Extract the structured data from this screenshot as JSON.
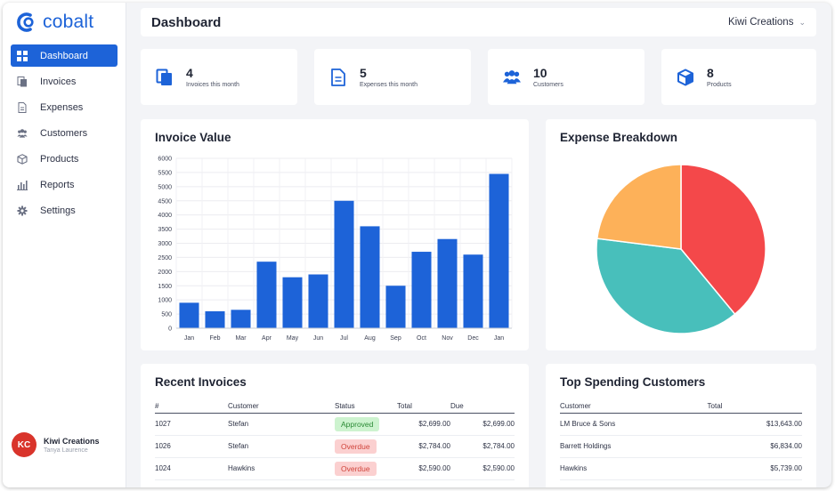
{
  "app": {
    "logo_text": "cobalt"
  },
  "sidebar": {
    "items": [
      {
        "label": "Dashboard",
        "icon": "dashboard-grid-icon",
        "active": true
      },
      {
        "label": "Invoices",
        "icon": "invoices-icon"
      },
      {
        "label": "Expenses",
        "icon": "expenses-icon"
      },
      {
        "label": "Customers",
        "icon": "customers-icon"
      },
      {
        "label": "Products",
        "icon": "products-icon"
      },
      {
        "label": "Reports",
        "icon": "reports-chart-icon"
      },
      {
        "label": "Settings",
        "icon": "gear-icon"
      }
    ],
    "user": {
      "initials": "KC",
      "name": "Kiwi Creations",
      "subtitle": "Tanya Laurence"
    }
  },
  "header": {
    "title": "Dashboard",
    "company": "Kiwi Creations"
  },
  "stats": [
    {
      "value": "4",
      "label": "Invoices this month",
      "icon": "invoice-stack-icon"
    },
    {
      "value": "5",
      "label": "Expenses this month",
      "icon": "document-icon"
    },
    {
      "value": "10",
      "label": "Customers",
      "icon": "users-icon"
    },
    {
      "value": "8",
      "label": "Products",
      "icon": "box-icon"
    }
  ],
  "colors": {
    "accent": "#1d63d8",
    "pie_red": "#f4484a",
    "pie_teal": "#48bfbb",
    "pie_orange": "#fdb159"
  },
  "invoice_chart": {
    "title": "Invoice Value",
    "chart_data": {
      "type": "bar",
      "categories": [
        "Jan",
        "Feb",
        "Mar",
        "Apr",
        "May",
        "Jun",
        "Jul",
        "Aug",
        "Sep",
        "Oct",
        "Nov",
        "Dec",
        "Jan"
      ],
      "values": [
        900,
        600,
        650,
        2350,
        1800,
        1900,
        4500,
        3600,
        1500,
        2700,
        3150,
        2600,
        5450
      ],
      "yticks": [
        "0",
        "500",
        "1000",
        "1500",
        "2000",
        "2500",
        "3000",
        "3500",
        "4000",
        "4500",
        "5000",
        "5500",
        "6000"
      ],
      "ylim": [
        0,
        6000
      ],
      "grid": true
    }
  },
  "expense_chart": {
    "title": "Expense Breakdown",
    "chart_data": {
      "type": "pie",
      "slices": [
        {
          "value": 39,
          "color": "#f4484a"
        },
        {
          "value": 38,
          "color": "#48bfbb"
        },
        {
          "value": 23,
          "color": "#fdb159"
        }
      ]
    }
  },
  "recent_invoices": {
    "title": "Recent Invoices",
    "columns": [
      "#",
      "Customer",
      "Status",
      "Total",
      "Due"
    ],
    "rows": [
      {
        "num": "1027",
        "customer": "Stefan",
        "status": "Approved",
        "status_type": "approved",
        "total": "$2,699.00",
        "due": "$2,699.00"
      },
      {
        "num": "1026",
        "customer": "Stefan",
        "status": "Overdue",
        "status_type": "overdue",
        "total": "$2,784.00",
        "due": "$2,784.00"
      },
      {
        "num": "1024",
        "customer": "Hawkins",
        "status": "Overdue",
        "status_type": "overdue",
        "total": "$2,590.00",
        "due": "$2,590.00"
      }
    ]
  },
  "top_customers": {
    "title": "Top Spending Customers",
    "columns": [
      "Customer",
      "Total"
    ],
    "rows": [
      {
        "customer": "LM Bruce & Sons",
        "total": "$13,643.00"
      },
      {
        "customer": "Barrett Holdings",
        "total": "$6,834.00"
      },
      {
        "customer": "Hawkins",
        "total": "$5,739.00"
      }
    ]
  }
}
